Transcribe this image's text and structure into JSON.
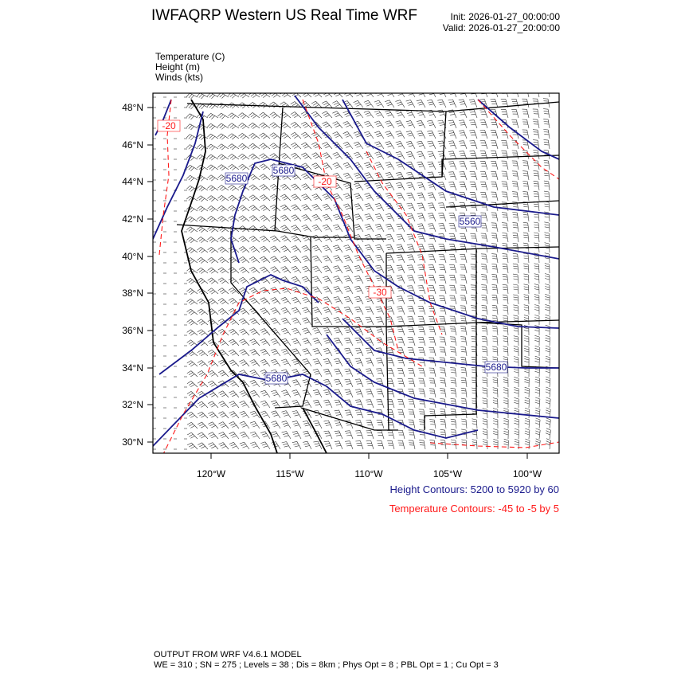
{
  "header": {
    "title": "IWFAQRP Western US Real Time WRF",
    "init": "Init: 2026-01-27_00:00:00",
    "valid": "Valid: 2026-01-27_20:00:00"
  },
  "fields": [
    "Temperature   (C)",
    "Height   (m)",
    "Winds   (kts)"
  ],
  "map": {
    "lat_ticks": [
      "48°N",
      "46°N",
      "44°N",
      "42°N",
      "40°N",
      "38°N",
      "36°N",
      "34°N",
      "32°N",
      "30°N"
    ],
    "lon_ticks": [
      "120°W",
      "115°W",
      "110°W",
      "105°W",
      "100°W"
    ],
    "height_labels": [
      "5680",
      "5680",
      "5560",
      "5680",
      "5680"
    ],
    "temp_labels": [
      "-20",
      "-20",
      "-30"
    ],
    "colors": {
      "height": "#1a1a8c",
      "temperature": "#ff1a1a",
      "barbs": "#000000",
      "borders": "#000000"
    }
  },
  "legend": {
    "height": "Height Contours: 5200 to 5920 by 60",
    "temperature": "Temperature Contours: -45 to -5 by 5"
  },
  "footer": {
    "line1": "OUTPUT FROM WRF V4.6.1 MODEL",
    "line2": "WE = 310 ; SN = 275 ; Levels = 38 ; Dis = 8km ; Phys Opt = 8 ; PBL Opt = 1 ; Cu Opt = 3"
  }
}
